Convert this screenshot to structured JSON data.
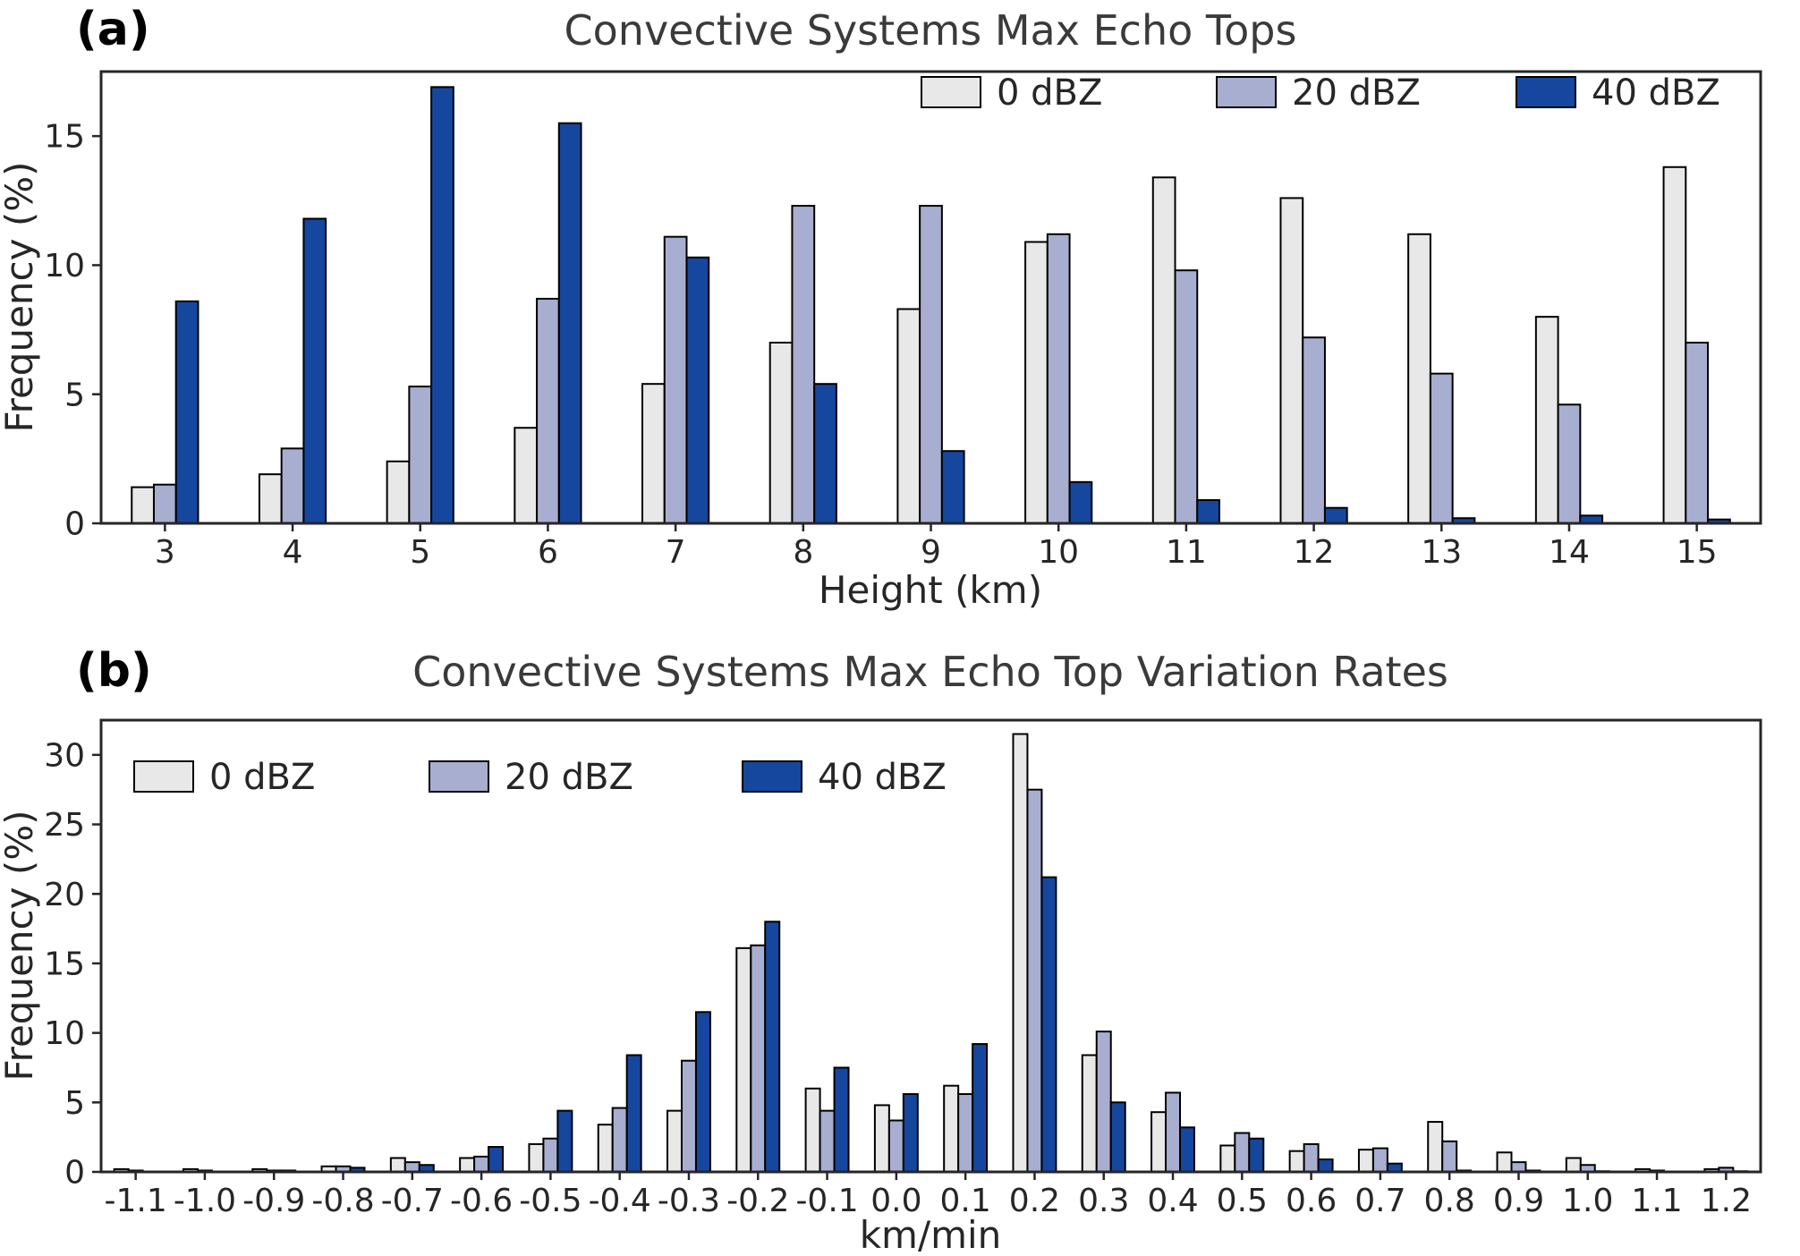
{
  "figure": {
    "background": "#ffffff",
    "series_colors": {
      "0 dBZ": "#e8e8e8",
      "20 dBZ": "#a8aed0",
      "40 dBZ": "#16479e"
    }
  },
  "chart_data": [
    {
      "type": "bar",
      "panel_label": "(a)",
      "title": "Convective Systems Max Echo Tops",
      "xlabel": "Height (km)",
      "ylabel": "Frequency (%)",
      "ylim": [
        0,
        17.5
      ],
      "yticks": [
        0,
        5,
        10,
        15
      ],
      "grid": false,
      "legend_position": "top-right",
      "categories": [
        "3",
        "4",
        "5",
        "6",
        "7",
        "8",
        "9",
        "10",
        "11",
        "12",
        "13",
        "14",
        "15"
      ],
      "series": [
        {
          "name": "0 dBZ",
          "color": "#e8e8e8",
          "values": [
            1.4,
            1.9,
            2.4,
            3.7,
            5.4,
            7.0,
            8.3,
            10.9,
            13.4,
            12.6,
            11.2,
            8.0,
            13.8
          ]
        },
        {
          "name": "20 dBZ",
          "color": "#a8aed0",
          "values": [
            1.5,
            2.9,
            5.3,
            8.7,
            11.1,
            12.3,
            12.3,
            11.2,
            9.8,
            7.2,
            5.8,
            4.6,
            7.0
          ]
        },
        {
          "name": "40 dBZ",
          "color": "#16479e",
          "values": [
            8.6,
            11.8,
            16.9,
            15.5,
            10.3,
            5.4,
            2.8,
            1.6,
            0.9,
            0.6,
            0.2,
            0.3,
            0.15
          ]
        }
      ]
    },
    {
      "type": "bar",
      "panel_label": "(b)",
      "title": "Convective Systems Max Echo Top Variation Rates",
      "xlabel": "km/min",
      "ylabel": "Frequency (%)",
      "ylim": [
        0,
        32.5
      ],
      "yticks": [
        0,
        5,
        10,
        15,
        20,
        25,
        30
      ],
      "grid": false,
      "legend_position": "top-left",
      "categories": [
        "-1.1",
        "-1.0",
        "-0.9",
        "-0.8",
        "-0.7",
        "-0.6",
        "-0.5",
        "-0.4",
        "-0.3",
        "-0.2",
        "-0.1",
        "0.0",
        "0.1",
        "0.2",
        "0.3",
        "0.4",
        "0.5",
        "0.6",
        "0.7",
        "0.8",
        "0.9",
        "1.0",
        "1.1",
        "1.2"
      ],
      "series": [
        {
          "name": "0 dBZ",
          "color": "#e8e8e8",
          "values": [
            0.2,
            0.2,
            0.2,
            0.4,
            1.0,
            1.0,
            2.0,
            3.4,
            4.4,
            16.1,
            6.0,
            4.8,
            6.2,
            31.5,
            8.4,
            4.3,
            1.9,
            1.5,
            1.6,
            3.6,
            1.4,
            1.0,
            0.2,
            0.2
          ]
        },
        {
          "name": "20 dBZ",
          "color": "#a8aed0",
          "values": [
            0.1,
            0.1,
            0.1,
            0.4,
            0.7,
            1.1,
            2.4,
            4.6,
            8.0,
            16.3,
            4.4,
            3.7,
            5.6,
            27.5,
            10.1,
            5.7,
            2.8,
            2.0,
            1.7,
            2.2,
            0.7,
            0.5,
            0.1,
            0.3
          ]
        },
        {
          "name": "40 dBZ",
          "color": "#16479e",
          "values": [
            0.0,
            0.0,
            0.1,
            0.3,
            0.5,
            1.8,
            4.4,
            8.4,
            11.5,
            18.0,
            7.5,
            5.6,
            9.2,
            21.2,
            5.0,
            3.2,
            2.4,
            0.9,
            0.6,
            0.1,
            0.1,
            0.05,
            0.0,
            0.05
          ]
        }
      ]
    }
  ]
}
